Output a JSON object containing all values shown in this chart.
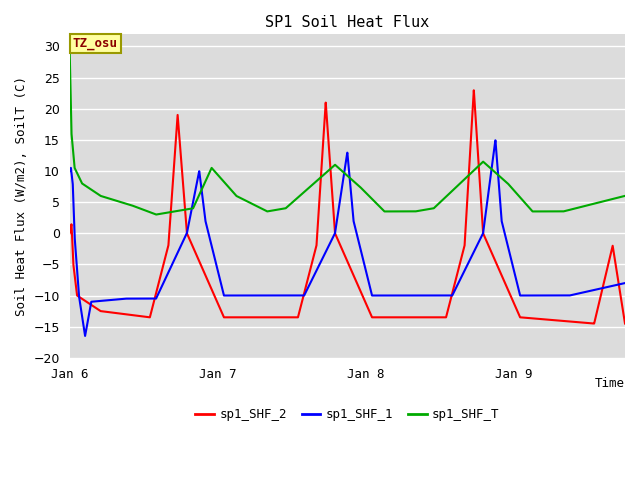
{
  "title": "SP1 Soil Heat Flux",
  "xlabel": "Time",
  "ylabel": "Soil Heat Flux (W/m2), SoilT (C)",
  "ylim": [
    -20,
    32
  ],
  "xtick_labels": [
    "Jan 6",
    "Jan 7",
    "Jan 8",
    "Jan 9"
  ],
  "annotation_text": "TZ_osu",
  "annotation_color": "#8B0000",
  "annotation_bg": "#FFFFA0",
  "legend_labels": [
    "sp1_SHF_2",
    "sp1_SHF_1",
    "sp1_SHF_T"
  ],
  "line_colors": [
    "#FF0000",
    "#0000FF",
    "#00AA00"
  ],
  "bg_color": "#DCDCDC",
  "grid_color": "#FFFFFF"
}
